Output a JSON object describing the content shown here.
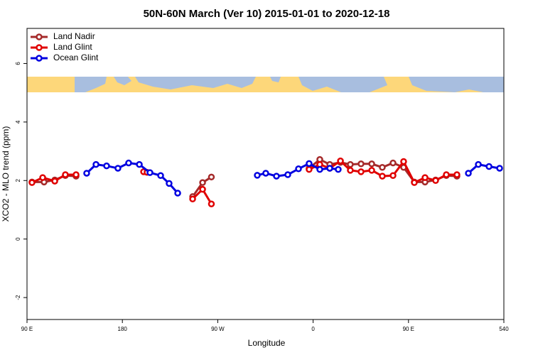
{
  "chart_data": {
    "type": "line",
    "title": "50N-60N March (Ver 10)   2015-01-01 to 2020-12-18",
    "x_label": "Longitude",
    "y_label": "XCO2 - MLO trend (ppm)",
    "xlim": [
      90,
      540
    ],
    "ylim": [
      -2.75,
      7.2
    ],
    "xticks": [
      {
        "value": 90,
        "label": "90 E"
      },
      180,
      {
        "value": 270,
        "label": "90 W"
      },
      {
        "value": 360,
        "label": "0"
      },
      {
        "value": 450,
        "label": "90 E"
      },
      540
    ],
    "yticks": [
      -2,
      0,
      2,
      4,
      6
    ],
    "legend": "upper left",
    "series": [
      {
        "name": "Land Nadir",
        "color": "#a52a2a",
        "x": [
          94.7,
          106.1,
          116.2,
          126.2,
          136.3,
          null,
          246.3,
          255.7,
          264.0,
          null,
          356.2,
          366.3,
          375.7,
          385.8,
          395.1,
          405.2,
          415.3,
          425.3,
          435.4,
          445.4,
          455.5,
          465.6,
          475.6,
          485.7,
          495.7
        ],
        "values": [
          1.95,
          1.95,
          2.02,
          2.17,
          2.15,
          null,
          1.45,
          1.93,
          2.12,
          null,
          2.42,
          2.72,
          2.55,
          2.62,
          2.55,
          2.57,
          2.57,
          2.45,
          2.6,
          2.45,
          1.95,
          1.95,
          2.02,
          2.17,
          2.15
        ]
      },
      {
        "name": "Land Glint",
        "color": "#e00000",
        "x": [
          94.7,
          104.8,
          116.2,
          126.2,
          136.3,
          null,
          200.0,
          203.3,
          null,
          246.3,
          255.7,
          264.0,
          null,
          356.2,
          366.3,
          375.7,
          385.8,
          395.1,
          405.2,
          415.3,
          425.3,
          435.4,
          445.4,
          455.5,
          465.6,
          475.6,
          485.7,
          495.7
        ],
        "values": [
          1.93,
          2.1,
          1.98,
          2.2,
          2.2,
          null,
          2.3,
          2.28,
          null,
          1.37,
          1.7,
          1.2,
          null,
          2.38,
          2.55,
          2.42,
          2.67,
          2.35,
          2.3,
          2.35,
          2.15,
          2.17,
          2.65,
          1.93,
          2.1,
          2.0,
          2.2,
          2.2
        ]
      },
      {
        "name": "Ocean Glint",
        "color": "#0000e0",
        "x": [
          146.3,
          155.1,
          165.1,
          175.8,
          185.9,
          196.0,
          206.0,
          216.1,
          224.1,
          232.2,
          null,
          307.3,
          315.3,
          325.4,
          336.1,
          346.2,
          356.2,
          366.3,
          375.7,
          383.7,
          null,
          506.5,
          515.9,
          526.0,
          536.0
        ],
        "values": [
          2.25,
          2.55,
          2.5,
          2.42,
          2.6,
          2.55,
          2.27,
          2.17,
          1.9,
          1.57,
          null,
          2.18,
          2.25,
          2.15,
          2.2,
          2.4,
          2.58,
          2.38,
          2.42,
          2.38,
          null,
          2.25,
          2.55,
          2.48,
          2.42
        ]
      }
    ]
  }
}
